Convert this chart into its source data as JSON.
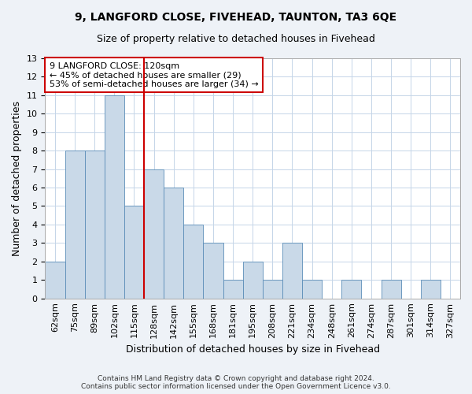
{
  "title": "9, LANGFORD CLOSE, FIVEHEAD, TAUNTON, TA3 6QE",
  "subtitle": "Size of property relative to detached houses in Fivehead",
  "xlabel": "Distribution of detached houses by size in Fivehead",
  "ylabel": "Number of detached properties",
  "bins": [
    "62sqm",
    "75sqm",
    "89sqm",
    "102sqm",
    "115sqm",
    "128sqm",
    "142sqm",
    "155sqm",
    "168sqm",
    "181sqm",
    "195sqm",
    "208sqm",
    "221sqm",
    "234sqm",
    "248sqm",
    "261sqm",
    "274sqm",
    "287sqm",
    "301sqm",
    "314sqm",
    "327sqm"
  ],
  "counts": [
    2,
    8,
    8,
    11,
    5,
    7,
    6,
    4,
    3,
    1,
    2,
    1,
    3,
    1,
    0,
    1,
    0,
    1,
    0,
    1,
    0
  ],
  "bar_color": "#c9d9e8",
  "bar_edge_color": "#5b8db8",
  "vline_x_index": 4.5,
  "vline_color": "#cc0000",
  "annotation_text": "9 LANGFORD CLOSE: 120sqm\n← 45% of detached houses are smaller (29)\n53% of semi-detached houses are larger (34) →",
  "annotation_box_color": "#ffffff",
  "annotation_box_edge_color": "#cc0000",
  "ylim": [
    0,
    13
  ],
  "yticks": [
    0,
    1,
    2,
    3,
    4,
    5,
    6,
    7,
    8,
    9,
    10,
    11,
    12,
    13
  ],
  "footer": "Contains HM Land Registry data © Crown copyright and database right 2024.\nContains public sector information licensed under the Open Government Licence v3.0.",
  "bg_color": "#eef2f7",
  "plot_bg_color": "#ffffff",
  "grid_color": "#c5d5e8",
  "title_fontsize": 10,
  "subtitle_fontsize": 9,
  "ylabel_fontsize": 9,
  "xlabel_fontsize": 9,
  "tick_fontsize": 8,
  "annotation_fontsize": 8
}
